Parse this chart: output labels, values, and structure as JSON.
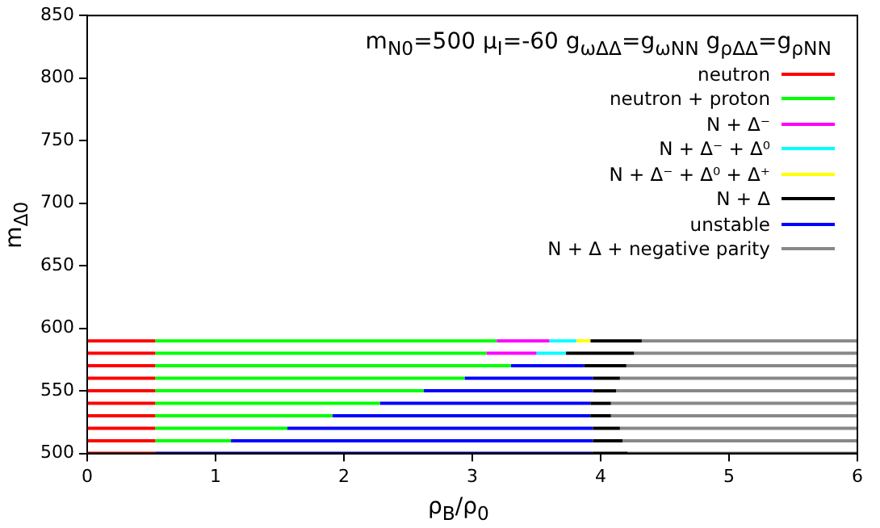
{
  "chart_data": {
    "type": "line",
    "title": "m$_{N0}$=500 μ$_{I}$=-60 g$_{ωΔΔ}$=g$_{ωNN}$ g$_{ρΔΔ}$=g$_{ρNN}$",
    "xlabel": "ρ$_{B}$/ρ$_{0}$",
    "ylabel": "m$_{Δ0}$",
    "xlim": [
      0,
      6
    ],
    "xticks": [
      0,
      1,
      2,
      3,
      4,
      5,
      6
    ],
    "ylim": [
      500,
      850
    ],
    "yticks": [
      500,
      550,
      600,
      650,
      700,
      750,
      800,
      850
    ],
    "grid": false,
    "legend": "top right",
    "marker": "none",
    "line_style": "solid",
    "series": [
      {
        "name": "neutron",
        "color": "#ff0000",
        "x": [
          0,
          0.53
        ],
        "values": [
          590,
          590
        ]
      },
      {
        "color": "#ff0000",
        "x": [
          0,
          0.53
        ],
        "values": [
          580,
          580
        ]
      },
      {
        "color": "#ff0000",
        "x": [
          0,
          0.53
        ],
        "values": [
          570,
          570
        ]
      },
      {
        "color": "#ff0000",
        "x": [
          0,
          0.53
        ],
        "values": [
          560,
          560
        ]
      },
      {
        "color": "#ff0000",
        "x": [
          0,
          0.53
        ],
        "values": [
          550,
          550
        ]
      },
      {
        "color": "#ff0000",
        "x": [
          0,
          0.53
        ],
        "values": [
          540,
          540
        ]
      },
      {
        "color": "#ff0000",
        "x": [
          0,
          0.53
        ],
        "values": [
          530,
          530
        ]
      },
      {
        "color": "#ff0000",
        "x": [
          0,
          0.53
        ],
        "values": [
          520,
          520
        ]
      },
      {
        "color": "#ff0000",
        "x": [
          0,
          0.53
        ],
        "values": [
          510,
          510
        ]
      },
      {
        "color": "#ff0000",
        "x": [
          0,
          0.53
        ],
        "values": [
          500,
          500
        ]
      },
      {
        "name": "neutron + proton",
        "color": "#00ff00",
        "x": [
          0.53,
          3.19
        ],
        "values": [
          590,
          590
        ]
      },
      {
        "color": "#00ff00",
        "x": [
          0.53,
          3.11
        ],
        "values": [
          580,
          580
        ]
      },
      {
        "color": "#00ff00",
        "x": [
          0.53,
          3.3
        ],
        "values": [
          570,
          570
        ]
      },
      {
        "color": "#00ff00",
        "x": [
          0.53,
          2.94
        ],
        "values": [
          560,
          560
        ]
      },
      {
        "color": "#00ff00",
        "x": [
          0.53,
          2.62
        ],
        "values": [
          550,
          550
        ]
      },
      {
        "color": "#00ff00",
        "x": [
          0.53,
          2.28
        ],
        "values": [
          540,
          540
        ]
      },
      {
        "color": "#00ff00",
        "x": [
          0.53,
          1.91
        ],
        "values": [
          530,
          530
        ]
      },
      {
        "color": "#00ff00",
        "x": [
          0.53,
          1.56
        ],
        "values": [
          520,
          520
        ]
      },
      {
        "color": "#00ff00",
        "x": [
          0.53,
          1.12
        ],
        "values": [
          510,
          510
        ]
      },
      {
        "name": "N + Δ⁻",
        "color": "#ff00ff",
        "x": [
          3.19,
          3.6
        ],
        "values": [
          590,
          590
        ]
      },
      {
        "color": "#ff00ff",
        "x": [
          3.11,
          3.5
        ],
        "values": [
          580,
          580
        ]
      },
      {
        "name": "N + Δ⁻ + Δ⁰",
        "color": "#00ffff",
        "x": [
          3.6,
          3.81
        ],
        "values": [
          590,
          590
        ]
      },
      {
        "color": "#00ffff",
        "x": [
          3.5,
          3.73
        ],
        "values": [
          580,
          580
        ]
      },
      {
        "name": "N + Δ⁻ + Δ⁰ + Δ⁺",
        "color": "#ffff00",
        "x": [
          3.81,
          3.92
        ],
        "values": [
          590,
          590
        ]
      },
      {
        "name": "N + Δ",
        "color": "#000000",
        "x": [
          3.92,
          4.32
        ],
        "values": [
          590,
          590
        ]
      },
      {
        "color": "#000000",
        "x": [
          3.73,
          4.26
        ],
        "values": [
          580,
          580
        ]
      },
      {
        "color": "#000000",
        "x": [
          3.87,
          4.2
        ],
        "values": [
          570,
          570
        ]
      },
      {
        "color": "#000000",
        "x": [
          3.94,
          4.15
        ],
        "values": [
          560,
          560
        ]
      },
      {
        "color": "#000000",
        "x": [
          3.94,
          4.12
        ],
        "values": [
          550,
          550
        ]
      },
      {
        "color": "#000000",
        "x": [
          3.92,
          4.08
        ],
        "values": [
          540,
          540
        ]
      },
      {
        "color": "#000000",
        "x": [
          3.92,
          4.08
        ],
        "values": [
          530,
          530
        ]
      },
      {
        "color": "#000000",
        "x": [
          3.94,
          4.15
        ],
        "values": [
          520,
          520
        ]
      },
      {
        "color": "#000000",
        "x": [
          3.94,
          4.17
        ],
        "values": [
          510,
          510
        ]
      },
      {
        "color": "#000000",
        "x": [
          3.94,
          4.21
        ],
        "values": [
          500,
          500
        ]
      },
      {
        "name": "unstable",
        "color": "#0000ff",
        "x": [
          3.3,
          3.87
        ],
        "values": [
          570,
          570
        ]
      },
      {
        "color": "#0000ff",
        "x": [
          2.94,
          3.94
        ],
        "values": [
          560,
          560
        ]
      },
      {
        "color": "#0000ff",
        "x": [
          2.62,
          3.94
        ],
        "values": [
          550,
          550
        ]
      },
      {
        "color": "#0000ff",
        "x": [
          2.28,
          3.92
        ],
        "values": [
          540,
          540
        ]
      },
      {
        "color": "#0000ff",
        "x": [
          1.91,
          3.92
        ],
        "values": [
          530,
          530
        ]
      },
      {
        "color": "#0000ff",
        "x": [
          1.56,
          3.94
        ],
        "values": [
          520,
          520
        ]
      },
      {
        "color": "#0000ff",
        "x": [
          1.12,
          3.94
        ],
        "values": [
          510,
          510
        ]
      },
      {
        "color": "#0000ff",
        "x": [
          0.53,
          3.94
        ],
        "values": [
          500,
          500
        ]
      },
      {
        "name": "N + Δ + negative parity",
        "color": "#888888",
        "x": [
          4.32,
          6
        ],
        "values": [
          590,
          590
        ]
      },
      {
        "color": "#888888",
        "x": [
          4.26,
          6
        ],
        "values": [
          580,
          580
        ]
      },
      {
        "color": "#888888",
        "x": [
          4.2,
          6
        ],
        "values": [
          570,
          570
        ]
      },
      {
        "color": "#888888",
        "x": [
          4.15,
          6
        ],
        "values": [
          560,
          560
        ]
      },
      {
        "color": "#888888",
        "x": [
          4.12,
          6
        ],
        "values": [
          550,
          550
        ]
      },
      {
        "color": "#888888",
        "x": [
          4.08,
          6
        ],
        "values": [
          540,
          540
        ]
      },
      {
        "color": "#888888",
        "x": [
          4.08,
          6
        ],
        "values": [
          530,
          530
        ]
      },
      {
        "color": "#888888",
        "x": [
          4.15,
          6
        ],
        "values": [
          520,
          520
        ]
      },
      {
        "color": "#888888",
        "x": [
          4.17,
          6
        ],
        "values": [
          510,
          510
        ]
      },
      {
        "color": "#888888",
        "x": [
          4.21,
          6
        ],
        "values": [
          500,
          500
        ]
      }
    ]
  }
}
